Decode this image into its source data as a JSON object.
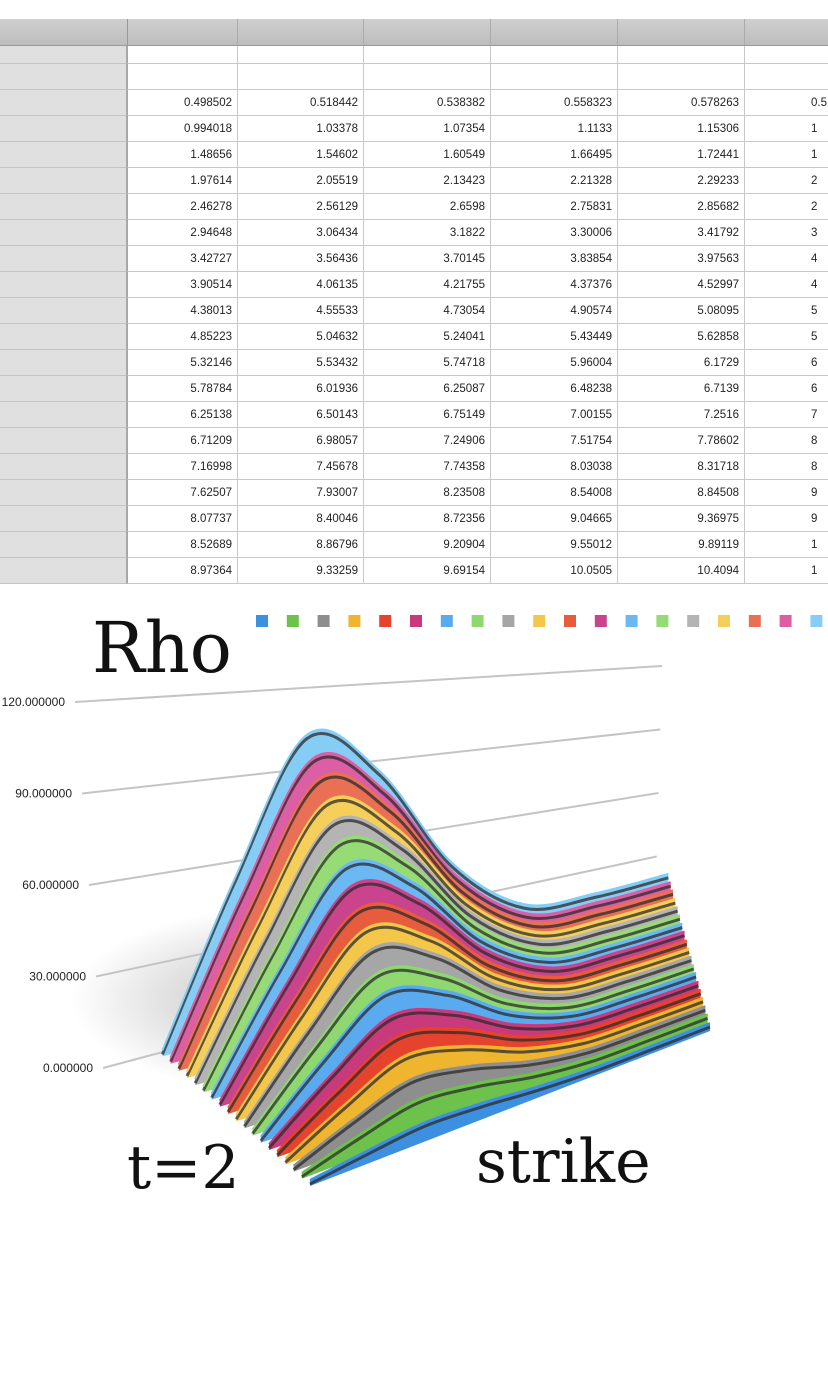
{
  "table": {
    "rows": [
      [
        "0.498502",
        "0.518442",
        "0.538382",
        "0.558323",
        "0.578263",
        "0.5"
      ],
      [
        "0.994018",
        "1.03378",
        "1.07354",
        "1.1133",
        "1.15306",
        "1"
      ],
      [
        "1.48656",
        "1.54602",
        "1.60549",
        "1.66495",
        "1.72441",
        "1"
      ],
      [
        "1.97614",
        "2.05519",
        "2.13423",
        "2.21328",
        "2.29233",
        "2"
      ],
      [
        "2.46278",
        "2.56129",
        "2.6598",
        "2.75831",
        "2.85682",
        "2"
      ],
      [
        "2.94648",
        "3.06434",
        "3.1822",
        "3.30006",
        "3.41792",
        "3"
      ],
      [
        "3.42727",
        "3.56436",
        "3.70145",
        "3.83854",
        "3.97563",
        "4"
      ],
      [
        "3.90514",
        "4.06135",
        "4.21755",
        "4.37376",
        "4.52997",
        "4"
      ],
      [
        "4.38013",
        "4.55533",
        "4.73054",
        "4.90574",
        "5.08095",
        "5"
      ],
      [
        "4.85223",
        "5.04632",
        "5.24041",
        "5.43449",
        "5.62858",
        "5"
      ],
      [
        "5.32146",
        "5.53432",
        "5.74718",
        "5.96004",
        "6.1729",
        "6"
      ],
      [
        "5.78784",
        "6.01936",
        "6.25087",
        "6.48238",
        "6.7139",
        "6"
      ],
      [
        "6.25138",
        "6.50143",
        "6.75149",
        "7.00155",
        "7.2516",
        "7"
      ],
      [
        "6.71209",
        "6.98057",
        "7.24906",
        "7.51754",
        "7.78602",
        "8"
      ],
      [
        "7.16998",
        "7.45678",
        "7.74358",
        "8.03038",
        "8.31718",
        "8"
      ],
      [
        "7.62507",
        "7.93007",
        "8.23508",
        "8.54008",
        "8.84508",
        "9"
      ],
      [
        "8.07737",
        "8.40046",
        "8.72356",
        "9.04665",
        "9.36975",
        "9"
      ],
      [
        "8.52689",
        "8.86796",
        "9.20904",
        "9.55012",
        "9.89119",
        "1"
      ],
      [
        "8.97364",
        "9.33259",
        "9.69154",
        "10.0505",
        "10.4094",
        "1"
      ]
    ]
  },
  "chart_data": {
    "type": "area3d",
    "title": "Rho",
    "xlabel": "strike",
    "zlabel": "t=2",
    "ylim": [
      0,
      120
    ],
    "yticks": [
      {
        "value": 0,
        "label": "0.000000"
      },
      {
        "value": 30,
        "label": "30.000000"
      },
      {
        "value": 60,
        "label": "60.000000"
      },
      {
        "value": 90,
        "label": "90.000000"
      },
      {
        "value": 120,
        "label": "120.000000"
      }
    ],
    "grid": true,
    "series": [
      {
        "color": "#3d8fe0",
        "values": [
          0,
          2.2,
          4,
          3.2,
          1.6,
          0.7,
          0.6,
          0.6
        ]
      },
      {
        "color": "#6cc24a",
        "values": [
          0,
          5,
          9,
          7.2,
          3.6,
          1.6,
          1.4,
          1.4
        ]
      },
      {
        "color": "#8e8e8e",
        "values": [
          0,
          7.2,
          13,
          10.4,
          5.2,
          2.3,
          2,
          2
        ]
      },
      {
        "color": "#f0b52f",
        "values": [
          0,
          9.9,
          18,
          14.4,
          7.2,
          3.2,
          2.7,
          2.7
        ]
      },
      {
        "color": "#e5432d",
        "values": [
          0,
          12.1,
          22,
          17.6,
          8.8,
          4,
          3.3,
          3.3
        ]
      },
      {
        "color": "#c83a7c",
        "values": [
          0,
          14.3,
          26,
          20.8,
          10.4,
          4.7,
          3.9,
          3.9
        ]
      },
      {
        "color": "#5aaaf0",
        "values": [
          0,
          17.1,
          31,
          24.8,
          12.4,
          5.6,
          4.7,
          4.7
        ]
      },
      {
        "color": "#8fd870",
        "values": [
          0,
          19.3,
          35,
          28,
          14,
          6.3,
          5.3,
          5.3
        ]
      },
      {
        "color": "#a6a6a6",
        "values": [
          0,
          22,
          40,
          32,
          16,
          7.2,
          6,
          6
        ]
      },
      {
        "color": "#f4c64a",
        "values": [
          0,
          24.2,
          44,
          35.2,
          17.6,
          7.9,
          6.6,
          6.6
        ]
      },
      {
        "color": "#e85c3e",
        "values": [
          0,
          26.4,
          48,
          38.4,
          19.2,
          8.6,
          7.2,
          7.2
        ]
      },
      {
        "color": "#c9448d",
        "values": [
          0,
          29.2,
          53,
          42.4,
          21.2,
          9.5,
          8,
          8
        ]
      },
      {
        "color": "#6cb8f2",
        "values": [
          0,
          31.4,
          57,
          45.6,
          22.8,
          10.3,
          8.6,
          8.6
        ]
      },
      {
        "color": "#97db76",
        "values": [
          0,
          34.1,
          62,
          49.6,
          24.8,
          11.2,
          9.3,
          9.3
        ]
      },
      {
        "color": "#b4b4b4",
        "values": [
          0,
          36.3,
          66,
          52.8,
          26.4,
          11.9,
          9.9,
          9.9
        ]
      },
      {
        "color": "#f5cf5a",
        "values": [
          0,
          38.5,
          70,
          56,
          28,
          12.6,
          10.5,
          10.5
        ]
      },
      {
        "color": "#e97055",
        "values": [
          0,
          41.3,
          75,
          60,
          30,
          13.5,
          11.3,
          11.3
        ]
      },
      {
        "color": "#dc5fa5",
        "values": [
          0,
          43.5,
          79,
          63.2,
          31.6,
          14.2,
          11.9,
          11.9
        ]
      },
      {
        "color": "#86cdf5",
        "values": [
          0,
          46.2,
          84,
          67.2,
          33.6,
          15.1,
          12.6,
          12.6
        ]
      }
    ]
  }
}
